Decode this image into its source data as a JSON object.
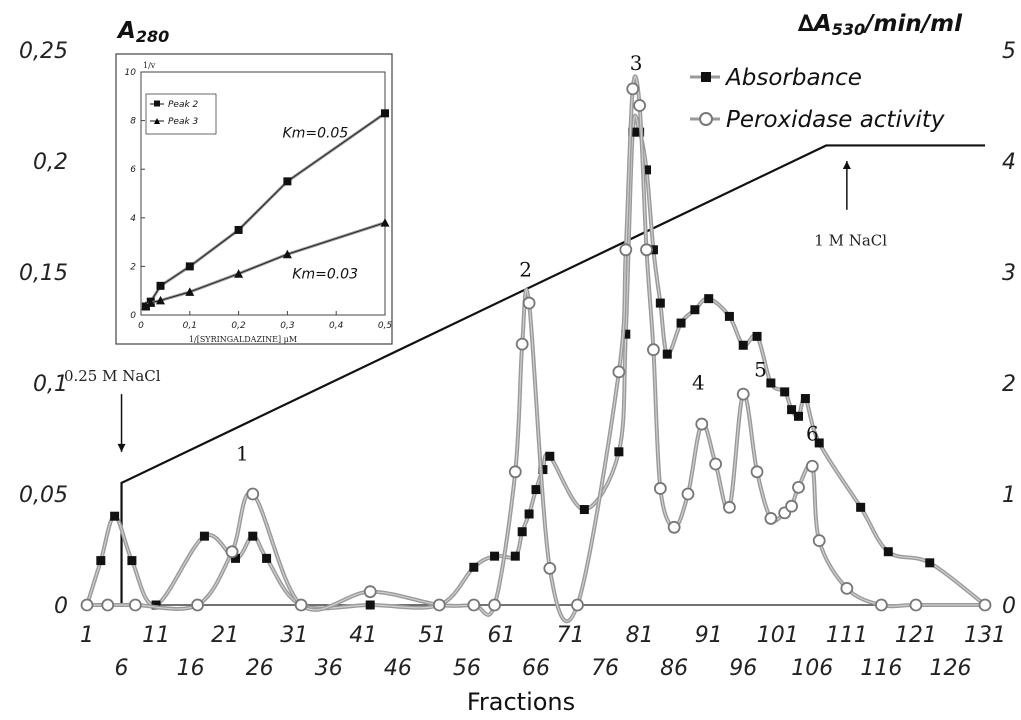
{
  "chart_data": {
    "type": "line",
    "title": "",
    "xlabel": "Fractions",
    "ylabel_left": "A280",
    "ylabel_right": "∆A530/min/ml",
    "xlim": [
      1,
      131
    ],
    "ylim_left": [
      0,
      0.25
    ],
    "ylim_right": [
      0,
      5
    ],
    "x_ticks": [
      "1",
      "6",
      "11",
      "16",
      "21",
      "26",
      "31",
      "36",
      "41",
      "46",
      "51",
      "56",
      "61",
      "66",
      "71",
      "76",
      "81",
      "86",
      "91",
      "96",
      "101",
      "106",
      "111",
      "116",
      "121",
      "126",
      "131"
    ],
    "y_left_ticks": [
      "0",
      "0,05",
      "0,1",
      "0,15",
      "0,2",
      "0,25"
    ],
    "y_right_ticks": [
      "0",
      "1",
      "2",
      "3",
      "4",
      "5"
    ],
    "legend_position": "top-right",
    "series": [
      {
        "name": "Absorbance",
        "axis": "left",
        "color": "#888888",
        "marker": "square",
        "points": [
          [
            1,
            0
          ],
          [
            3,
            0.02
          ],
          [
            5,
            0.04
          ],
          [
            7.5,
            0.02
          ],
          [
            11,
            0
          ],
          [
            18,
            0.031
          ],
          [
            22.5,
            0.021
          ],
          [
            25,
            0.031
          ],
          [
            27,
            0.021
          ],
          [
            32,
            0
          ],
          [
            42,
            0
          ],
          [
            52,
            0
          ],
          [
            57,
            0.017
          ],
          [
            60,
            0.022
          ],
          [
            63,
            0.022
          ],
          [
            64,
            0.033
          ],
          [
            65,
            0.041
          ],
          [
            66,
            0.052
          ],
          [
            67,
            0.061
          ],
          [
            68,
            0.067
          ],
          [
            73,
            0.043
          ],
          [
            78,
            0.069
          ],
          [
            79,
            0.122
          ],
          [
            80,
            0.213
          ],
          [
            81,
            0.213
          ],
          [
            82,
            0.196
          ],
          [
            83,
            0.16
          ],
          [
            84,
            0.136
          ],
          [
            85,
            0.113
          ],
          [
            87,
            0.127
          ],
          [
            89,
            0.133
          ],
          [
            91,
            0.138
          ],
          [
            94,
            0.13
          ],
          [
            96,
            0.117
          ],
          [
            98,
            0.121
          ],
          [
            100,
            0.1
          ],
          [
            102,
            0.096
          ],
          [
            103,
            0.088
          ],
          [
            104,
            0.085
          ],
          [
            105,
            0.093
          ],
          [
            107,
            0.073
          ],
          [
            113,
            0.044
          ],
          [
            117,
            0.024
          ],
          [
            123,
            0.019
          ],
          [
            131,
            0
          ]
        ]
      },
      {
        "name": "Peroxidase activity",
        "axis": "right",
        "color": "#888888",
        "marker": "circle",
        "points": [
          [
            1,
            0
          ],
          [
            4,
            0
          ],
          [
            8,
            0
          ],
          [
            17,
            0
          ],
          [
            22,
            0.48
          ],
          [
            25,
            1.0
          ],
          [
            32,
            0
          ],
          [
            42,
            0.12
          ],
          [
            52,
            0
          ],
          [
            57,
            0
          ],
          [
            60,
            0
          ],
          [
            63,
            1.2
          ],
          [
            64,
            2.35
          ],
          [
            65,
            2.72
          ],
          [
            68,
            0.33
          ],
          [
            72,
            0
          ],
          [
            78,
            2.1
          ],
          [
            79,
            3.2
          ],
          [
            80,
            4.65
          ],
          [
            81,
            4.5
          ],
          [
            82,
            3.2
          ],
          [
            83,
            2.3
          ],
          [
            84,
            1.05
          ],
          [
            86,
            0.7
          ],
          [
            88,
            1.0
          ],
          [
            90,
            1.63
          ],
          [
            92,
            1.27
          ],
          [
            94,
            0.88
          ],
          [
            96,
            1.9
          ],
          [
            98,
            1.2
          ],
          [
            100,
            0.78
          ],
          [
            102,
            0.83
          ],
          [
            103,
            0.89
          ],
          [
            104,
            1.06
          ],
          [
            106,
            1.25
          ],
          [
            107,
            0.58
          ],
          [
            111,
            0.15
          ],
          [
            116,
            0
          ],
          [
            121,
            0
          ],
          [
            131,
            0
          ]
        ]
      }
    ],
    "gradient_line": {
      "label": "NaCl gradient",
      "axis": "left",
      "points": [
        [
          6,
          0
        ],
        [
          6,
          0.055
        ],
        [
          108,
          0.207
        ],
        [
          131,
          0.207
        ]
      ]
    },
    "peak_labels": [
      {
        "text": "1",
        "x": 23.5,
        "y": 0.065
      },
      {
        "text": "2",
        "x": 64.5,
        "y": 0.148
      },
      {
        "text": "3",
        "x": 80.5,
        "y": 0.241
      },
      {
        "text": "4",
        "x": 89.5,
        "y": 0.097
      },
      {
        "text": "5",
        "x": 98.5,
        "y": 0.103
      },
      {
        "text": "6",
        "x": 106,
        "y": 0.074
      }
    ],
    "annotations": [
      {
        "text": "0.25 M NaCl",
        "arrow_at_x": 6,
        "text_x": 9,
        "text_y": 0.101,
        "arrow_from": 0.095,
        "arrow_to": 0.069
      },
      {
        "text": "1 M NaCl",
        "arrow_at_x": 111,
        "text_x": 113,
        "text_y": 0.162,
        "arrow_from": 0.178,
        "arrow_to": 0.2
      }
    ],
    "inset": {
      "type": "scatter",
      "ylabel": "1/v",
      "xlabel": "1/[SYRINGALDAZINE] µM",
      "xlim": [
        0,
        0.5
      ],
      "ylim": [
        0,
        10
      ],
      "x_ticks": [
        "0",
        "0,1",
        "0,2",
        "0,3",
        "0,4",
        "0,5"
      ],
      "y_ticks": [
        "0",
        "2",
        "4",
        "6",
        "8",
        "10"
      ],
      "series": [
        {
          "name": "Peak 2",
          "marker": "square",
          "km_label": "Km=0.05",
          "points": [
            [
              0.01,
              0.35
            ],
            [
              0.02,
              0.55
            ],
            [
              0.04,
              1.2
            ],
            [
              0.1,
              2.0
            ],
            [
              0.2,
              3.5
            ],
            [
              0.3,
              5.5
            ],
            [
              0.5,
              8.3
            ]
          ]
        },
        {
          "name": "Peak 3",
          "marker": "triangle",
          "km_label": "Km=0.03",
          "points": [
            [
              0.01,
              0.38
            ],
            [
              0.02,
              0.5
            ],
            [
              0.04,
              0.6
            ],
            [
              0.1,
              0.95
            ],
            [
              0.2,
              1.7
            ],
            [
              0.3,
              2.5
            ],
            [
              0.5,
              3.8
            ]
          ]
        }
      ]
    }
  }
}
